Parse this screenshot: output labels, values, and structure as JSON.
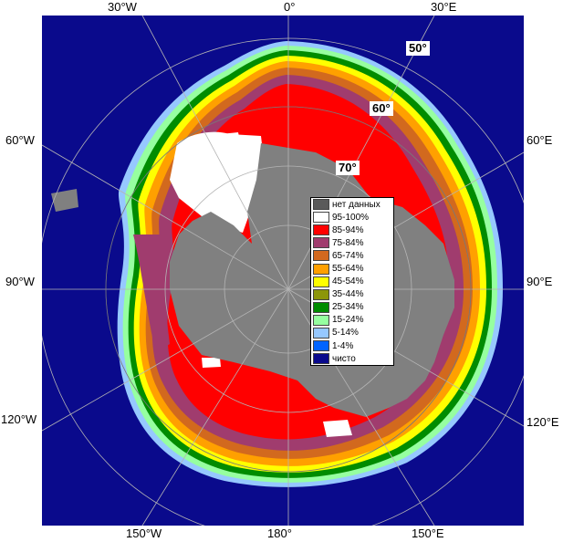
{
  "lon_labels": {
    "w30": "30°W",
    "zero": "0°",
    "e30": "30°E",
    "w60": "60°W",
    "e60": "60°E",
    "w90": "90°W",
    "e90": "90°E",
    "w120": "120°W",
    "e120": "120°E",
    "w150": "150°W",
    "d180": "180°",
    "e150": "150°E"
  },
  "lat_labels": {
    "l50": "50°",
    "l60": "60°",
    "l70": "70°"
  },
  "legend": [
    {
      "label": "нет данных",
      "color": "#5a5a5a"
    },
    {
      "label": "95-100%",
      "color": "#ffffff"
    },
    {
      "label": "85-94%",
      "color": "#ff0000"
    },
    {
      "label": "75-84%",
      "color": "#a03c6e"
    },
    {
      "label": "65-74%",
      "color": "#d2691e"
    },
    {
      "label": "55-64%",
      "color": "#ffa000"
    },
    {
      "label": "45-54%",
      "color": "#ffff00"
    },
    {
      "label": "35-44%",
      "color": "#8c960a"
    },
    {
      "label": "25-34%",
      "color": "#008c00"
    },
    {
      "label": "15-24%",
      "color": "#96ffa0"
    },
    {
      "label": "5-14%",
      "color": "#96c8ff"
    },
    {
      "label": "1-4%",
      "color": "#0064ff"
    },
    {
      "label": "чисто",
      "color": "#0a0a8c"
    }
  ],
  "colors": {
    "ocean": "#0a0a8c",
    "land": "#808080",
    "no_data": "#5a5a5a"
  }
}
